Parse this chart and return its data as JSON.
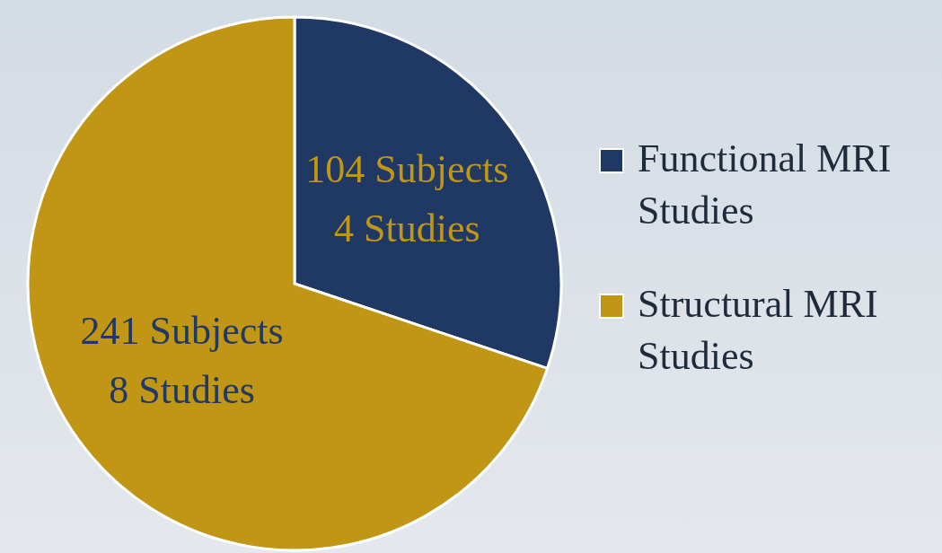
{
  "chart_data": {
    "type": "pie",
    "categories": [
      "Functional MRI Studies",
      "Structural MRI Studies"
    ],
    "values": [
      104,
      241
    ],
    "colors": [
      "#1f3864",
      "#c09614"
    ],
    "value_labels": [
      "104 Subjects\n4 Studies",
      "241 Subjects\n8 Studies"
    ],
    "legend": "right"
  }
}
